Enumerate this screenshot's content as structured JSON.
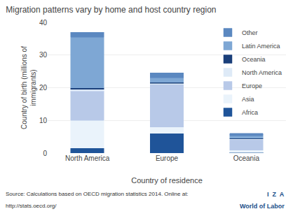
{
  "chart_data": {
    "type": "bar",
    "stacked": true,
    "title": "Migration patterns vary by home and host country region",
    "xlabel": "Country of residence",
    "ylabel": "Country of birth (millions of\nimmigrants)",
    "categories": [
      "North America",
      "Europe",
      "Oceania"
    ],
    "series": [
      {
        "name": "Africa",
        "color": "#1f5499",
        "values": [
          1.5,
          6.0,
          0.15
        ]
      },
      {
        "name": "Asia",
        "color": "#eaf3fb",
        "values": [
          8.5,
          2.0,
          0.8
        ]
      },
      {
        "name": "Europe",
        "color": "#b8c9e8",
        "values": [
          9.0,
          13.0,
          3.2
        ]
      },
      {
        "name": "North America",
        "color": "#deeaf7",
        "values": [
          0.5,
          0.3,
          0.15
        ]
      },
      {
        "name": "Oceania",
        "color": "#1a3f7a",
        "values": [
          0.5,
          0.4,
          0.3
        ]
      },
      {
        "name": "Latin America",
        "color": "#7ea7d4",
        "values": [
          15.5,
          1.3,
          0.7
        ]
      },
      {
        "name": "Other",
        "color": "#5b88c0",
        "values": [
          1.5,
          1.5,
          0.7
        ]
      }
    ],
    "ylim": [
      0,
      40
    ],
    "yticks": [
      0,
      10,
      20,
      30,
      40
    ],
    "grid": true,
    "legend": "upper right",
    "annotations": [
      "Source: Calculations based on OECD migration statistics 2014. Online at:",
      "http://stats.oecd.org/",
      "I  Z  A",
      "World of Labor"
    ]
  }
}
